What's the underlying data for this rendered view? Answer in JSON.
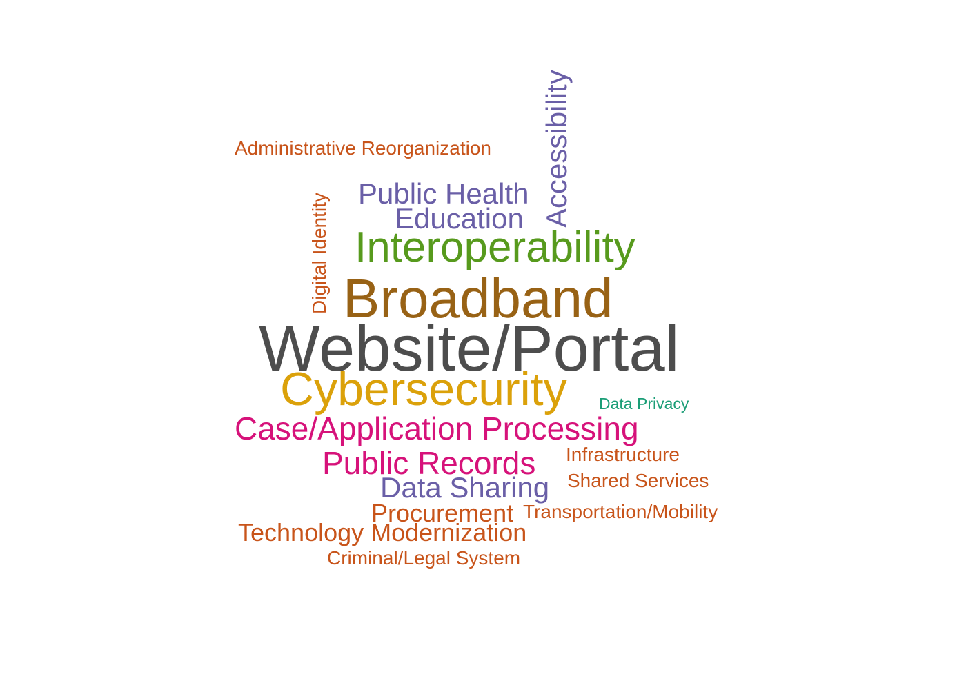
{
  "words": [
    {
      "id": "website-portal",
      "text": "Website/Portal",
      "color": "#4d4d4d"
    },
    {
      "id": "broadband",
      "text": "Broadband",
      "color": "#986215"
    },
    {
      "id": "cybersecurity",
      "text": "Cybersecurity",
      "color": "#dba10a"
    },
    {
      "id": "interoperability",
      "text": "Interoperability",
      "color": "#579a1d"
    },
    {
      "id": "case-application-processing",
      "text": "Case/Application Processing",
      "color": "#d6127a"
    },
    {
      "id": "public-records",
      "text": "Public Records",
      "color": "#d6127a"
    },
    {
      "id": "public-health",
      "text": "Public Health",
      "color": "#6a5fa7"
    },
    {
      "id": "education",
      "text": "Education",
      "color": "#6a5fa7"
    },
    {
      "id": "accessibility",
      "text": "Accessibility",
      "color": "#6a5fa7"
    },
    {
      "id": "data-sharing",
      "text": "Data Sharing",
      "color": "#6a5fa7"
    },
    {
      "id": "technology-modernization",
      "text": "Technology Modernization",
      "color": "#c8541a"
    },
    {
      "id": "procurement",
      "text": "Procurement",
      "color": "#c8541a"
    },
    {
      "id": "administrative-reorganization",
      "text": "Administrative Reorganization",
      "color": "#c8541a"
    },
    {
      "id": "digital-identity",
      "text": "Digital Identity",
      "color": "#c8541a"
    },
    {
      "id": "infrastructure",
      "text": "Infrastructure",
      "color": "#c8541a"
    },
    {
      "id": "shared-services",
      "text": "Shared Services",
      "color": "#c8541a"
    },
    {
      "id": "transportation-mobility",
      "text": "Transportation/Mobility",
      "color": "#c8541a"
    },
    {
      "id": "criminal-legal-system",
      "text": "Criminal/Legal System",
      "color": "#c8541a"
    },
    {
      "id": "data-privacy",
      "text": "Data Privacy",
      "color": "#1b9e77"
    }
  ]
}
